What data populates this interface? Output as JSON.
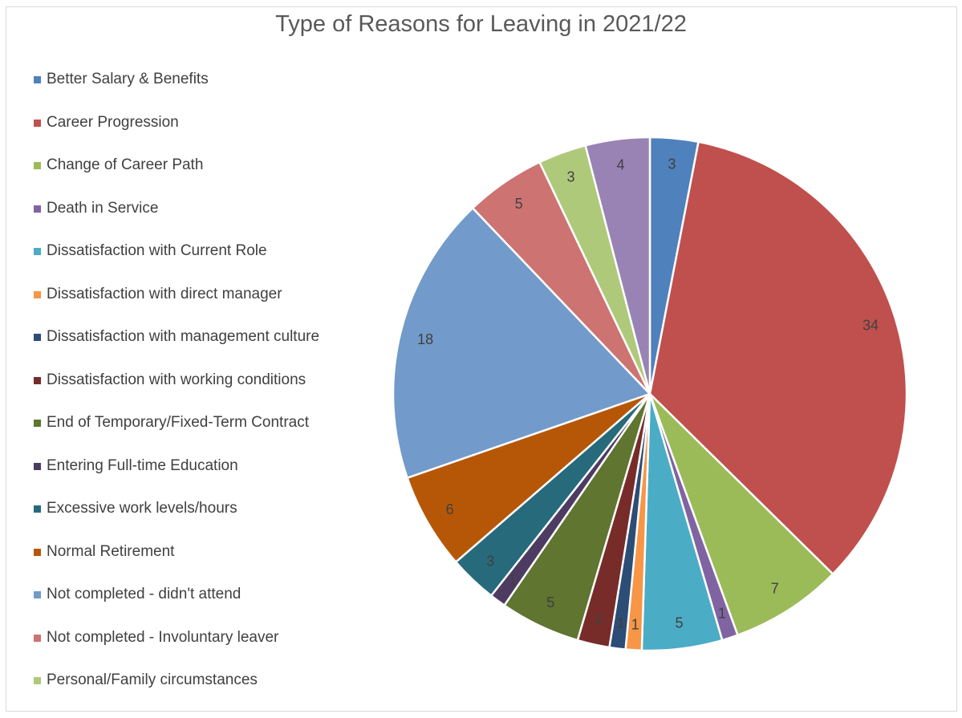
{
  "chart_data": {
    "type": "pie",
    "title": "Type of Reasons for Leaving in 2021/22",
    "legend_position": "left",
    "data_labels": true,
    "start_angle_deg": 0,
    "direction": "clockwise",
    "slices": [
      {
        "label": "Better Salary & Benefits",
        "value": 3,
        "color": "#4f81bd"
      },
      {
        "label": "Career Progression",
        "value": 34,
        "color": "#c0504d"
      },
      {
        "label": "Change of Career Path",
        "value": 7,
        "color": "#9bbb59"
      },
      {
        "label": "Death in Service",
        "value": 1,
        "color": "#8064a2"
      },
      {
        "label": "Dissatisfaction with Current Role",
        "value": 5,
        "color": "#4bacc6"
      },
      {
        "label": "Dissatisfaction with direct manager",
        "value": 1,
        "color": "#f79646"
      },
      {
        "label": "Dissatisfaction with management culture",
        "value": 1,
        "color": "#2c4d75"
      },
      {
        "label": "Dissatisfaction with working conditions",
        "value": 2,
        "color": "#772c2a"
      },
      {
        "label": "End of Temporary/Fixed-Term Contract",
        "value": 5,
        "color": "#5f7530"
      },
      {
        "label": "Entering Full-time Education",
        "value": 1,
        "color": "#4d3b62"
      },
      {
        "label": "Excessive work levels/hours",
        "value": 3,
        "color": "#276a7c"
      },
      {
        "label": "Normal Retirement",
        "value": 6,
        "color": "#b65708"
      },
      {
        "label": "Not completed - didn't attend",
        "value": 18,
        "color": "#729aca"
      },
      {
        "label": "Not completed - Involuntary leaver",
        "value": 5,
        "color": "#cd7371"
      },
      {
        "label": "Personal/Family circumstances",
        "value": 3,
        "color": "#afc97a"
      },
      {
        "label": "",
        "value": 4,
        "color": "#9983b5"
      }
    ]
  }
}
